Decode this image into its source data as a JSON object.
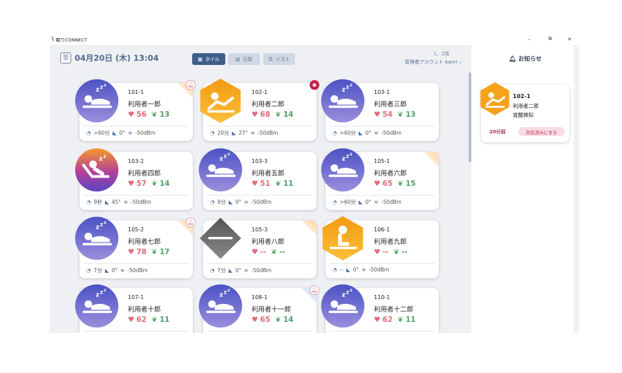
{
  "app": {
    "title": "眠りCONNECT",
    "logo": "\\",
    "window_controls": {
      "minimize": "–",
      "maximize": "⧉",
      "close": "✕"
    }
  },
  "header": {
    "datetime": "04月20日 (木) 13:04",
    "floor": "1、2階",
    "account": "管理者アカウント kanri",
    "account_chevron": "⌵"
  },
  "views": {
    "tile": "タイル",
    "log": "日誌",
    "list": "リスト"
  },
  "colors": {
    "sleep": "#5b5fc7",
    "awake": "#f7a21b",
    "sitting": "#f49b19",
    "absent": "#6b6b6b",
    "alert": "#c3224a"
  },
  "cards": [
    {
      "room": "101-1",
      "name": "利用者一郎",
      "hr": "56",
      "rr": "13",
      "time": ">60分",
      "angle": "0°",
      "signal": "-50dBm",
      "state": "sleep",
      "bell": true,
      "fold": "orange"
    },
    {
      "room": "102-1",
      "name": "利用者二郎",
      "hr": "68",
      "rr": "14",
      "time": "20分",
      "angle": "27°",
      "signal": "-50dBm",
      "state": "awake",
      "alert": true
    },
    {
      "room": "103-1",
      "name": "利用者三郎",
      "hr": "54",
      "rr": "13",
      "time": ">60分",
      "angle": "0°",
      "signal": "-50dBm",
      "state": "sleep"
    },
    {
      "room": "103-2",
      "name": "利用者四郎",
      "hr": "57",
      "rr": "14",
      "time": "9秒",
      "angle": "45°",
      "signal": "-50dBm",
      "state": "recline"
    },
    {
      "room": "103-3",
      "name": "利用者五郎",
      "hr": "51",
      "rr": "11",
      "time": "9分",
      "angle": "0°",
      "signal": "-50dBm",
      "state": "sleep"
    },
    {
      "room": "105-1",
      "name": "利用者六郎",
      "hr": "65",
      "rr": "15",
      "time": ">60分",
      "angle": "0°",
      "signal": "-50dBm",
      "state": "sleep",
      "fold": "orange"
    },
    {
      "room": "105-2",
      "name": "利用者七郎",
      "hr": "78",
      "rr": "17",
      "time": "7分",
      "angle": "0°",
      "signal": "-50dBm",
      "state": "sleep",
      "bell": true,
      "fold": "orange"
    },
    {
      "room": "105-3",
      "name": "利用者八郎",
      "hr": "--",
      "rr": "--",
      "time": "7分",
      "angle": "0°",
      "signal": "-50dBm",
      "state": "absent",
      "fold": "orange"
    },
    {
      "room": "106-1",
      "name": "利用者九郎",
      "hr": "--",
      "rr": "--",
      "time": "--",
      "angle": "0°",
      "signal": "-50dBm",
      "state": "sitting"
    },
    {
      "room": "107-1",
      "name": "利用者十郎",
      "hr": "62",
      "rr": "11",
      "time": "",
      "angle": "",
      "signal": "",
      "state": "sleep"
    },
    {
      "room": "108-1",
      "name": "利用者十一郎",
      "hr": "65",
      "rr": "14",
      "time": "",
      "angle": "",
      "signal": "",
      "state": "sleep",
      "bell": true,
      "fold": "blue"
    },
    {
      "room": "110-1",
      "name": "利用者十二郎",
      "hr": "62",
      "rr": "11",
      "time": "",
      "angle": "",
      "signal": "",
      "state": "sleep"
    }
  ],
  "notifications": {
    "title": "お知らせ",
    "items": [
      {
        "room": "102-1",
        "name": "利用者二郎",
        "type": "覚醒検知",
        "time": "20分前",
        "action": "対応済みにする"
      }
    ]
  }
}
